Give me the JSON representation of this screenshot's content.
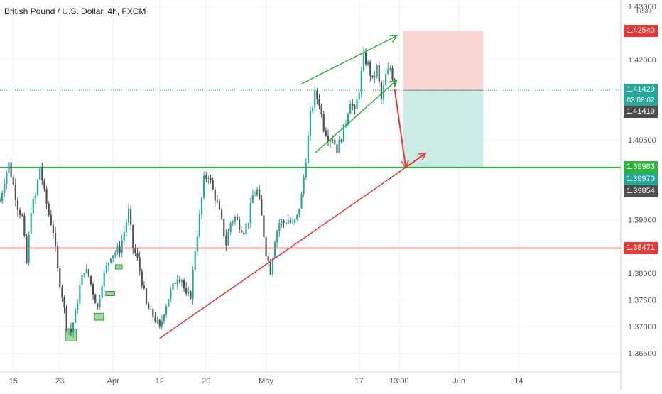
{
  "title": "British Pound / U.S. Dollar, 4h, FXCM",
  "colors": {
    "up": "#26a69a",
    "down": "#4d4d4d",
    "grid": "#eef0f3",
    "support_line": "#2db33a",
    "resistance_line": "#e53935",
    "channel": "#2db33a",
    "arrow": "#e53935",
    "stop_zone": "#fbd5d3",
    "target_zone": "#cdebe6",
    "demand_box": "#7ccf7c"
  },
  "chart_data": {
    "type": "candlestick",
    "symbol": "British Pound / U.S. Dollar",
    "timeframe": "4h",
    "source": "FXCM",
    "currency_label": "USD",
    "y_range": [
      1.3615,
      1.4312
    ],
    "x_range_candles": [
      0,
      280
    ],
    "x_ticks": [
      {
        "label": "15",
        "candle": 6
      },
      {
        "label": "23",
        "candle": 27
      },
      {
        "label": "Apr",
        "candle": 51
      },
      {
        "label": "12",
        "candle": 72
      },
      {
        "label": "20",
        "candle": 93
      },
      {
        "label": "May",
        "candle": 120
      },
      {
        "label": "17",
        "candle": 162
      },
      {
        "label": "13:00",
        "candle": 180
      },
      {
        "label": "Jun",
        "candle": 207
      },
      {
        "label": "14",
        "candle": 234
      }
    ],
    "y_ticks": [
      "1.43000",
      "1.42000",
      "1.40500",
      "1.39000",
      "1.38000",
      "1.37500",
      "1.37000",
      "1.36500"
    ],
    "y_tick_values": [
      1.43,
      1.42,
      1.405,
      1.39,
      1.38,
      1.375,
      1.37,
      1.365
    ],
    "waypoints": [
      [
        0,
        1.3935
      ],
      [
        2,
        1.3975
      ],
      [
        4,
        1.4005
      ],
      [
        6,
        1.3965
      ],
      [
        8,
        1.3925
      ],
      [
        10,
        1.3905
      ],
      [
        12,
        1.3818
      ],
      [
        14,
        1.392
      ],
      [
        16,
        1.3945
      ],
      [
        18,
        1.4
      ],
      [
        20,
        1.395
      ],
      [
        22,
        1.391
      ],
      [
        24,
        1.388
      ],
      [
        26,
        1.3805
      ],
      [
        28,
        1.376
      ],
      [
        30,
        1.3705
      ],
      [
        32,
        1.369
      ],
      [
        34,
        1.3725
      ],
      [
        36,
        1.3775
      ],
      [
        38,
        1.3808
      ],
      [
        40,
        1.3795
      ],
      [
        42,
        1.3765
      ],
      [
        44,
        1.3735
      ],
      [
        46,
        1.3785
      ],
      [
        48,
        1.381
      ],
      [
        50,
        1.3835
      ],
      [
        52,
        1.384
      ],
      [
        54,
        1.3845
      ],
      [
        56,
        1.3878
      ],
      [
        58,
        1.3915
      ],
      [
        60,
        1.3848
      ],
      [
        62,
        1.3825
      ],
      [
        64,
        1.3785
      ],
      [
        66,
        1.374
      ],
      [
        68,
        1.3725
      ],
      [
        70,
        1.3715
      ],
      [
        72,
        1.3695
      ],
      [
        74,
        1.373
      ],
      [
        76,
        1.3755
      ],
      [
        78,
        1.3775
      ],
      [
        80,
        1.3795
      ],
      [
        82,
        1.379
      ],
      [
        84,
        1.3755
      ],
      [
        86,
        1.376
      ],
      [
        88,
        1.3845
      ],
      [
        90,
        1.3905
      ],
      [
        92,
        1.3975
      ],
      [
        94,
        1.3985
      ],
      [
        96,
        1.3955
      ],
      [
        98,
        1.393
      ],
      [
        100,
        1.3895
      ],
      [
        102,
        1.3855
      ],
      [
        104,
        1.3895
      ],
      [
        106,
        1.3905
      ],
      [
        108,
        1.389
      ],
      [
        110,
        1.388
      ],
      [
        112,
        1.39
      ],
      [
        114,
        1.3945
      ],
      [
        116,
        1.3955
      ],
      [
        118,
        1.3905
      ],
      [
        120,
        1.384
      ],
      [
        122,
        1.3805
      ],
      [
        124,
        1.3865
      ],
      [
        126,
        1.3895
      ],
      [
        128,
        1.3895
      ],
      [
        130,
        1.39
      ],
      [
        132,
        1.389
      ],
      [
        134,
        1.3905
      ],
      [
        136,
        1.3945
      ],
      [
        138,
        1.4015
      ],
      [
        140,
        1.4095
      ],
      [
        142,
        1.4135
      ],
      [
        144,
        1.412
      ],
      [
        146,
        1.4075
      ],
      [
        148,
        1.4055
      ],
      [
        150,
        1.4055
      ],
      [
        152,
        1.4032
      ],
      [
        154,
        1.4055
      ],
      [
        156,
        1.4085
      ],
      [
        158,
        1.4125
      ],
      [
        160,
        1.41
      ],
      [
        162,
        1.4145
      ],
      [
        164,
        1.4205
      ],
      [
        166,
        1.419
      ],
      [
        168,
        1.416
      ],
      [
        170,
        1.4185
      ],
      [
        172,
        1.4125
      ],
      [
        174,
        1.417
      ],
      [
        176,
        1.4185
      ],
      [
        178,
        1.4155
      ]
    ],
    "horizontal_lines": [
      {
        "price": 1.39983,
        "label": "1.39983",
        "color": "#2db33a",
        "width": 2
      },
      {
        "price": 1.38471,
        "label": "1.38471",
        "color": "#e53935",
        "width": 1.5
      }
    ],
    "trendline": {
      "from": [
        72,
        1.3678
      ],
      "to": [
        183,
        1.39983
      ],
      "color": "#e53935"
    },
    "channel": {
      "upper": {
        "from": [
          136,
          1.4155
        ],
        "to": [
          179,
          1.4245
        ]
      },
      "lower": {
        "from": [
          142,
          1.4025
        ],
        "to": [
          179,
          1.4162
        ]
      }
    },
    "projection_arrows": [
      {
        "from": [
          178,
          1.4145
        ],
        "to": [
          183,
          1.39983
        ]
      },
      {
        "from": [
          183,
          1.39983
        ],
        "to": [
          192,
          1.4025
        ]
      }
    ],
    "position": {
      "entry": 1.41429,
      "stop": 1.4254,
      "target": 1.39983,
      "from_candle": 182,
      "to_candle": 218
    },
    "demand_boxes": [
      {
        "candle_from": 29.5,
        "candle_to": 34.5,
        "low": 1.3673,
        "high": 1.3695
      },
      {
        "candle_from": 42.7,
        "candle_to": 46.7,
        "low": 1.3712,
        "high": 1.3725
      },
      {
        "candle_from": 47.7,
        "candle_to": 51.7,
        "low": 1.3758,
        "high": 1.3766
      },
      {
        "candle_from": 52.1,
        "candle_to": 55.1,
        "low": 1.3808,
        "high": 1.3816
      }
    ],
    "price_labels": [
      {
        "text": "1.42540",
        "price": 1.4254,
        "bg": "#e53935"
      },
      {
        "text": "1.41429",
        "price": 1.41429,
        "bg": "#26a69a"
      },
      {
        "text": "03:08:02",
        "price": 1.4133,
        "bg": "#26a69a",
        "timer": true
      },
      {
        "text": "1.41410",
        "price": 1.4141,
        "bg": "#4d4d4d"
      },
      {
        "text": "1.39983",
        "price": 1.39983,
        "bg": "#2db33a"
      },
      {
        "text": "1.39970",
        "price": 1.3997,
        "bg": "#26a69a"
      },
      {
        "text": "1.39854",
        "price": 1.39854,
        "bg": "#4d4d4d"
      },
      {
        "text": "1.38471",
        "price": 1.38471,
        "bg": "#e53935"
      }
    ]
  }
}
